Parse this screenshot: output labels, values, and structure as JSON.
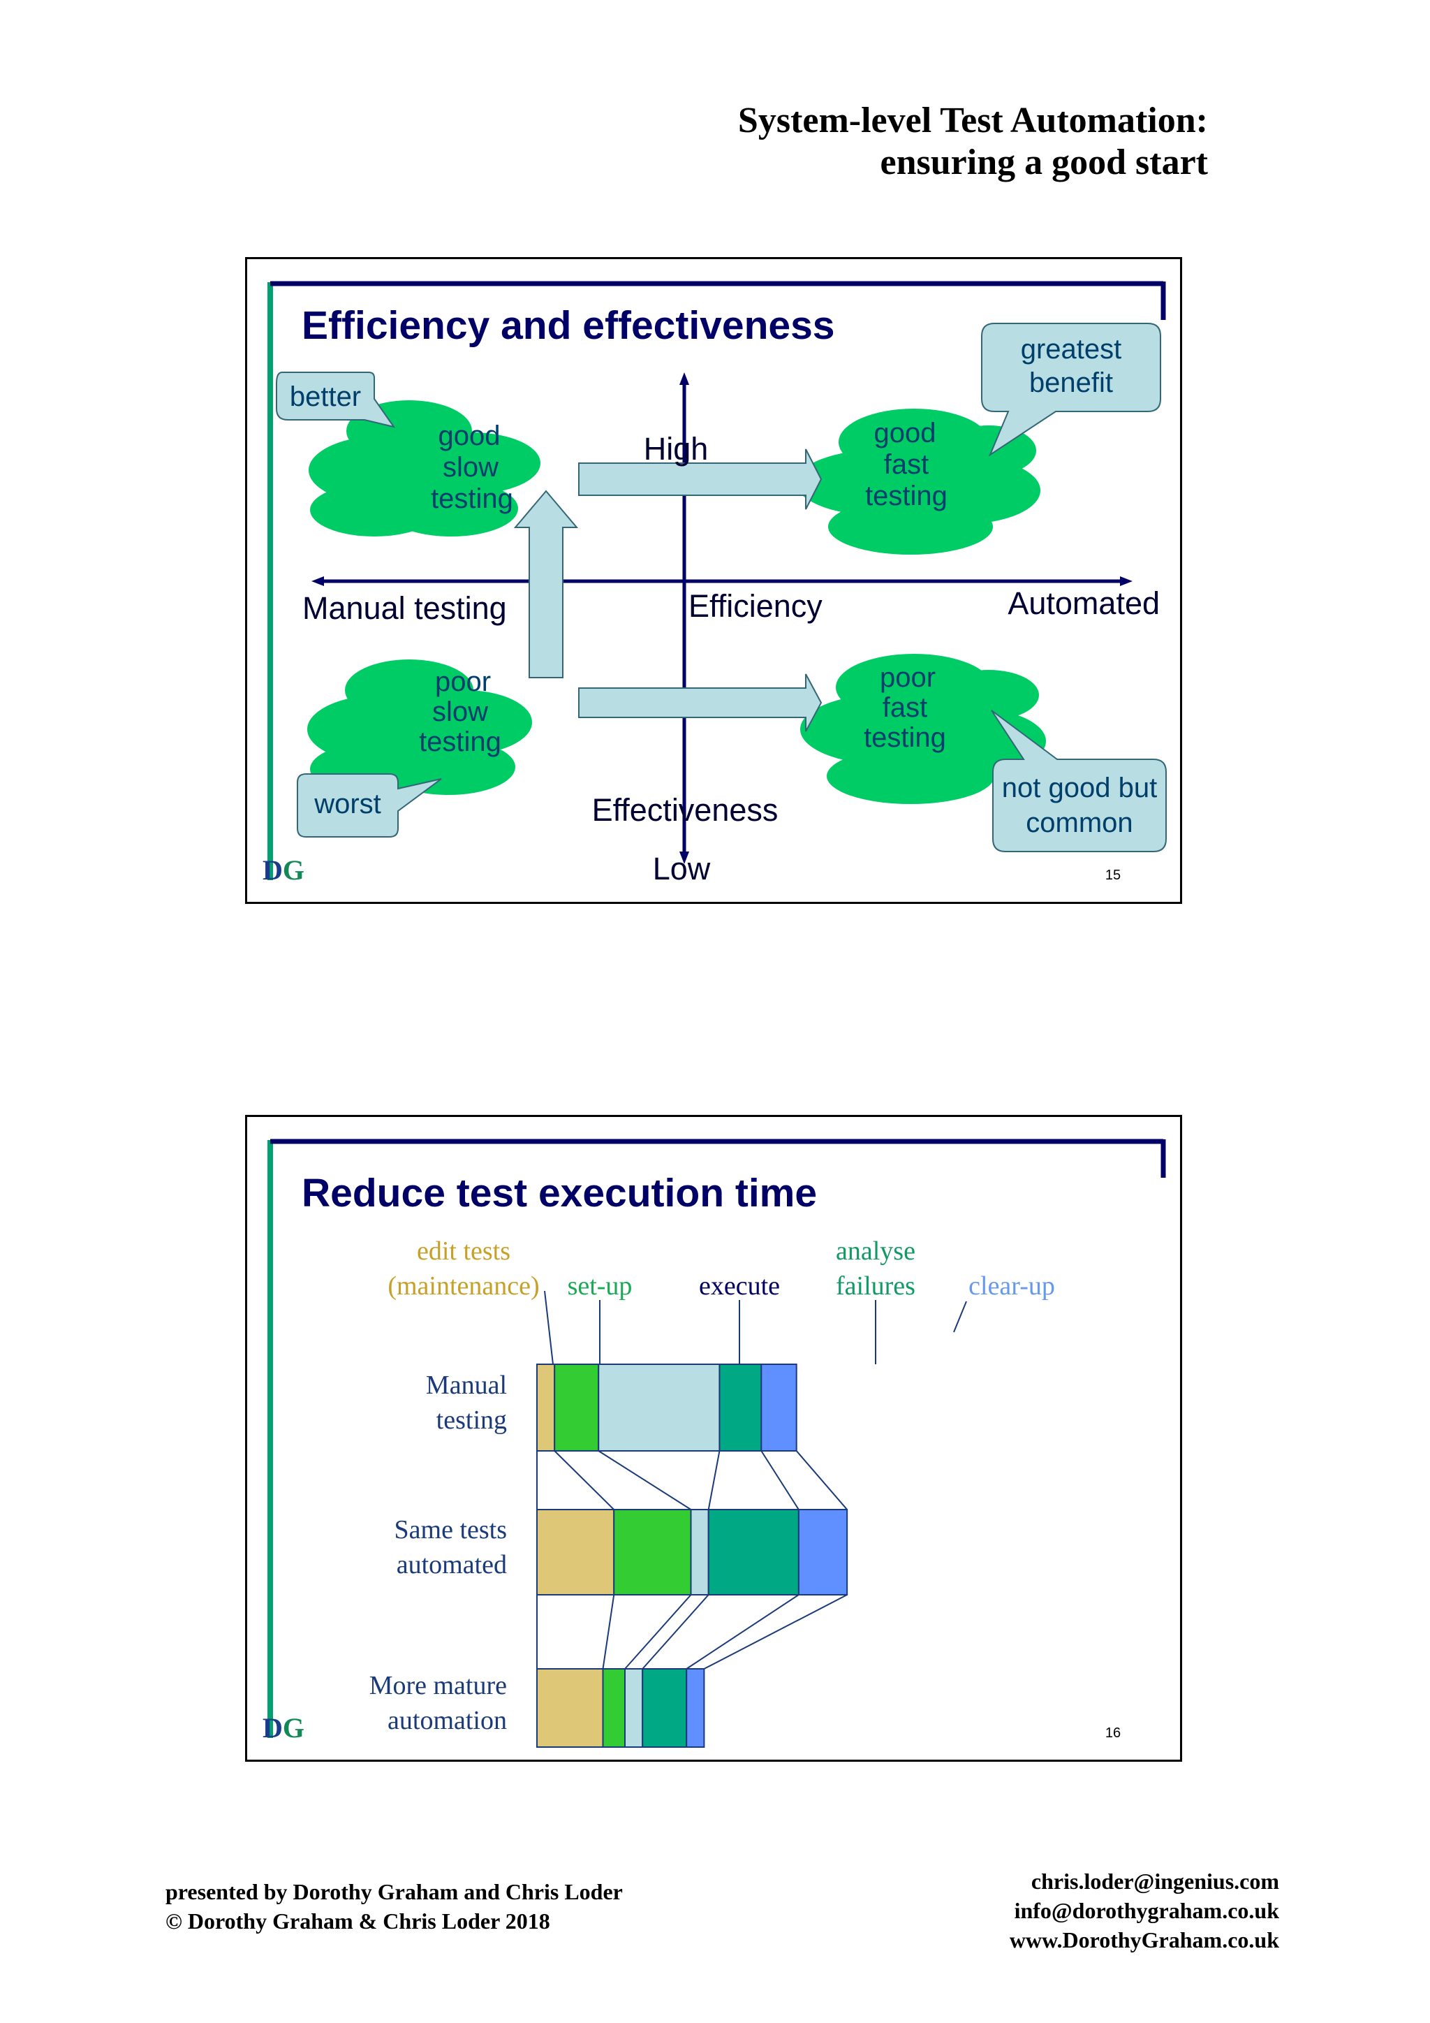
{
  "header": {
    "title_line1": "System-level Test Automation:",
    "title_line2": "ensuring a good start"
  },
  "slide1": {
    "title": "Efficiency and effectiveness",
    "axis": {
      "high": "High",
      "low": "Low",
      "left": "Manual testing",
      "right": "Automated",
      "x_label": "Efficiency",
      "y_label": "Effectiveness"
    },
    "clouds": {
      "good_slow": [
        "good",
        "slow",
        "testing"
      ],
      "good_fast": [
        "good",
        "fast",
        "testing"
      ],
      "poor_slow": [
        "poor",
        "slow",
        "testing"
      ],
      "poor_fast": [
        "poor",
        "fast",
        "testing"
      ]
    },
    "callouts": {
      "better": "better",
      "greatest": [
        "greatest",
        "benefit"
      ],
      "worst": "worst",
      "common": [
        "not good but",
        "common"
      ]
    },
    "logo": "DG",
    "page_number": "15"
  },
  "slide2": {
    "title": "Reduce test execution time",
    "logo": "DG",
    "page_number": "16",
    "chart_data": {
      "type": "bar",
      "stacked": true,
      "orientation": "horizontal",
      "categories": [
        [
          "Manual",
          "testing"
        ],
        [
          "Same tests",
          "automated"
        ],
        [
          "More mature",
          "automation"
        ]
      ],
      "series": [
        {
          "name": [
            "edit tests",
            "(maintenance)"
          ],
          "color": "#dec878",
          "values": [
            0.4,
            1.75,
            1.5
          ]
        },
        {
          "name": [
            "set-up"
          ],
          "color": "#33cc33",
          "values": [
            1.0,
            1.75,
            0.5
          ]
        },
        {
          "name": [
            "execute"
          ],
          "color": "#b8dde2",
          "values": [
            2.75,
            0.4,
            0.4
          ]
        },
        {
          "name": [
            "analyse",
            "failures"
          ],
          "color": "#00a884",
          "values": [
            0.95,
            2.05,
            1.0
          ]
        },
        {
          "name": [
            "clear-up"
          ],
          "color": "#6090ff",
          "values": [
            0.8,
            1.1,
            0.4
          ]
        }
      ],
      "label_colors": [
        "#c8a028",
        "#1aaa55",
        "#000066",
        "#119966",
        "#6699ee"
      ]
    }
  },
  "footer": {
    "presented_by": "presented by Dorothy Graham and Chris Loder",
    "copyright": "© Dorothy Graham & Chris Loder 2018",
    "email1": "chris.loder@ingenius.com",
    "email2": "info@dorothygraham.co.uk",
    "website": "www.DorothyGraham.co.uk"
  }
}
